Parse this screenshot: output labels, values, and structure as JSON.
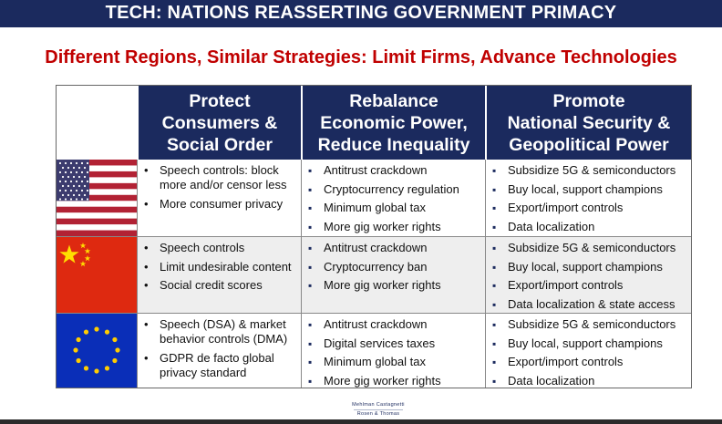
{
  "slide": {
    "title": "TECH: NATIONS REASSERTING GOVERNMENT PRIMACY",
    "subtitle": "Different Regions, Similar Strategies: Limit Firms, Advance Technologies",
    "footer_logo": {
      "line1": "Mehlman Castagnetti",
      "line2": "Rosen & Thomas"
    },
    "colors": {
      "navy": "#1b2a5e",
      "red": "#c00000"
    }
  },
  "columns": [
    {
      "lines": [
        "Protect",
        "Consumers &",
        "Social Order"
      ]
    },
    {
      "lines": [
        "Rebalance",
        "Economic Power,",
        "Reduce Inequality"
      ]
    },
    {
      "lines": [
        "Promote",
        "National Security &",
        "Geopolitical Power"
      ]
    }
  ],
  "rows": [
    {
      "flag": "us-flag-icon",
      "cells": [
        [
          "Speech controls: block more and/or censor less",
          "More consumer privacy"
        ],
        [
          "Antitrust crackdown",
          "Cryptocurrency regulation",
          "Minimum global tax",
          "More gig worker rights"
        ],
        [
          "Subsidize 5G & semiconductors",
          "Buy local, support champions",
          "Export/import controls",
          "Data localization"
        ]
      ]
    },
    {
      "flag": "china-flag-icon",
      "cells": [
        [
          "Speech controls",
          "Limit undesirable content",
          "Social credit scores"
        ],
        [
          "Antitrust crackdown",
          "Cryptocurrency ban",
          "More gig worker rights"
        ],
        [
          "Subsidize 5G & semiconductors",
          "Buy local, support champions",
          "Export/import controls",
          "Data localization & state access"
        ]
      ]
    },
    {
      "flag": "eu-flag-icon",
      "cells": [
        [
          "Speech (DSA) & market behavior controls (DMA)",
          "GDPR de facto global privacy standard"
        ],
        [
          "Antitrust crackdown",
          "Digital services taxes",
          "Minimum global tax",
          "More gig worker rights"
        ],
        [
          "Subsidize 5G & semiconductors",
          "Buy local, support champions",
          "Export/import controls",
          "Data localization"
        ]
      ]
    }
  ]
}
